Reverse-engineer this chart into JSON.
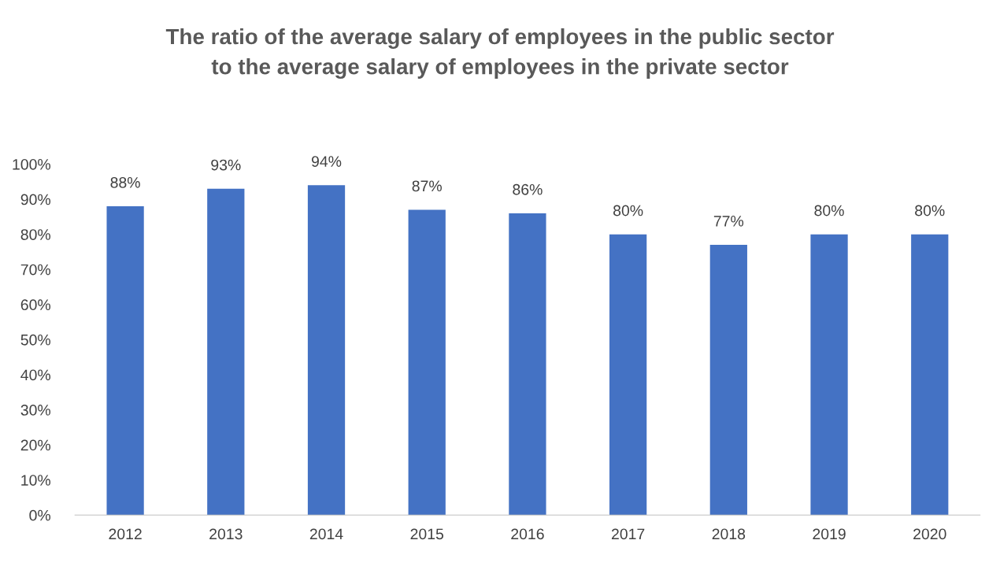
{
  "chart_data": {
    "type": "bar",
    "title": "The ratio of the average salary of employees in the public sector\nto the average salary of employees in the private sector",
    "categories": [
      "2012",
      "2013",
      "2014",
      "2015",
      "2016",
      "2017",
      "2018",
      "2019",
      "2020"
    ],
    "values": [
      88,
      93,
      94,
      87,
      86,
      80,
      77,
      80,
      80
    ],
    "color": "#4472c4",
    "value_labels": [
      "88%",
      "93%",
      "94%",
      "87%",
      "86%",
      "80%",
      "77%",
      "80%",
      "80%"
    ],
    "ylim": [
      0,
      100
    ],
    "yticks": [
      {
        "value": 0,
        "label": "0%"
      },
      {
        "value": 10,
        "label": "10%"
      },
      {
        "value": 20,
        "label": "20%"
      },
      {
        "value": 30,
        "label": "30%"
      },
      {
        "value": 40,
        "label": "40%"
      },
      {
        "value": 50,
        "label": "50%"
      },
      {
        "value": 60,
        "label": "60%"
      },
      {
        "value": 70,
        "label": "70%"
      },
      {
        "value": 80,
        "label": "80%"
      },
      {
        "value": 90,
        "label": "90%"
      },
      {
        "value": 100,
        "label": "100%"
      }
    ]
  }
}
